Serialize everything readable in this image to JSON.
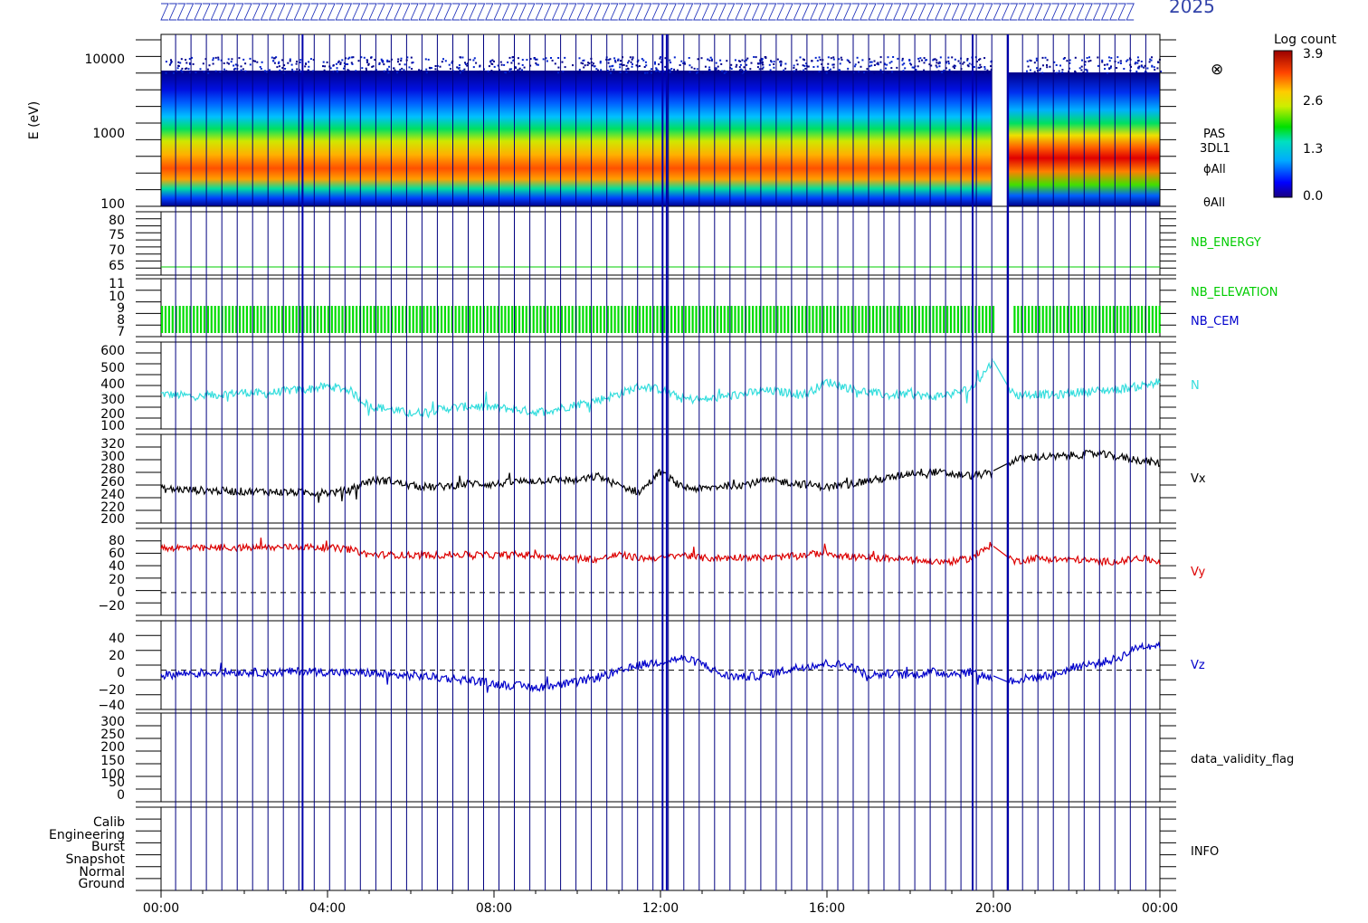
{
  "header": {
    "title_fragment": "2025"
  },
  "x_axis": {
    "ticks": [
      "00:00",
      "04:00",
      "08:00",
      "12:00",
      "16:00",
      "20:00",
      "00:00"
    ],
    "range_hours": [
      0,
      24
    ]
  },
  "colorbar": {
    "title": "Log count",
    "ticks": [
      "3.9",
      "2.6",
      "1.3",
      "0.0"
    ],
    "range": [
      0.0,
      3.9
    ]
  },
  "panels": {
    "spectrogram": {
      "ylabel": "E (eV)",
      "yticks": [
        "10000",
        "1000",
        "100"
      ],
      "log_range": [
        100,
        15000
      ],
      "right_labels": [
        "⊗",
        "PAS",
        "3DL1",
        "ϕAll",
        "θAll"
      ]
    },
    "nb_energy": {
      "label": "NB_ENERGY",
      "label_color": "#00cc00",
      "yticks": [
        "80",
        "75",
        "70",
        "65"
      ],
      "ylim": [
        62,
        82
      ],
      "value": 64
    },
    "nb_elevation": {
      "labels": [
        {
          "text": "NB_ELEVATION",
          "color": "#00cc00"
        },
        {
          "text": "NB_CEM",
          "color": "#0000cc"
        }
      ],
      "yticks": [
        "11",
        "10",
        "9",
        "8",
        "7"
      ],
      "ylim": [
        6.6,
        11.3
      ]
    },
    "density": {
      "label": "N",
      "color": "#33dddd",
      "yticks": [
        "600",
        "500",
        "400",
        "300",
        "200",
        "100"
      ],
      "ylim": [
        70,
        640
      ]
    },
    "vx": {
      "label": "Vx",
      "color": "#000000",
      "yticks": [
        "320",
        "300",
        "280",
        "260",
        "240",
        "220",
        "200"
      ],
      "ylim": [
        192,
        330
      ]
    },
    "vy": {
      "label": "Vy",
      "color": "#dd0000",
      "yticks": [
        "80",
        "60",
        "40",
        "20",
        "0",
        "−20"
      ],
      "ylim": [
        -33,
        93
      ]
    },
    "vz": {
      "label": "Vz",
      "color": "#0000cc",
      "yticks": [
        "40",
        "20",
        "0",
        "−20",
        "−40"
      ],
      "ylim": [
        -46,
        58
      ]
    },
    "validity": {
      "label": "data_validity_flag",
      "yticks": [
        "300",
        "250",
        "200",
        "150",
        "100",
        "50",
        "0"
      ],
      "ylim": [
        -20,
        312
      ]
    },
    "info": {
      "label": "INFO",
      "categories": [
        "Calib",
        "Engineering",
        "Burst",
        "Snapshot",
        "Normal",
        "Ground"
      ]
    }
  },
  "colors": {
    "frame": "#000000",
    "vlines": "#000080",
    "gap_start": 20.0,
    "gap_end": 20.35
  },
  "chart_data": {
    "type": "line",
    "x": [
      0,
      0.5,
      1,
      1.5,
      2,
      2.5,
      3,
      3.5,
      4,
      4.5,
      5,
      5.5,
      6,
      6.5,
      7,
      7.5,
      8,
      8.5,
      9,
      9.5,
      10,
      10.5,
      11,
      11.5,
      12,
      12.5,
      13,
      13.5,
      14,
      14.5,
      15,
      15.5,
      16,
      16.5,
      17,
      17.5,
      18,
      18.5,
      19,
      19.5,
      20,
      20.5,
      21,
      21.5,
      22,
      22.5,
      23,
      23.5,
      24
    ],
    "series": [
      {
        "name": "N",
        "values": [
          300,
          290,
          280,
          300,
          310,
          300,
          320,
          330,
          350,
          330,
          220,
          200,
          170,
          190,
          210,
          220,
          210,
          200,
          180,
          200,
          230,
          260,
          300,
          350,
          330,
          270,
          260,
          280,
          300,
          320,
          310,
          300,
          380,
          340,
          310,
          290,
          300,
          280,
          300,
          340,
          520,
          290,
          300,
          290,
          310,
          320,
          330,
          350,
          380
        ]
      },
      {
        "name": "Vx",
        "values": [
          245,
          244,
          243,
          242,
          241,
          241,
          240,
          240,
          239,
          242,
          258,
          258,
          250,
          248,
          250,
          254,
          252,
          256,
          258,
          260,
          258,
          265,
          250,
          240,
          272,
          248,
          245,
          250,
          252,
          258,
          256,
          252,
          248,
          252,
          258,
          262,
          270,
          272,
          268,
          266,
          270,
          290,
          295,
          295,
          298,
          300,
          295,
          290,
          285
        ]
      },
      {
        "name": "Vy",
        "values": [
          65,
          65,
          64,
          65,
          65,
          65,
          66,
          66,
          65,
          63,
          55,
          55,
          54,
          54,
          55,
          55,
          54,
          55,
          54,
          52,
          50,
          48,
          55,
          50,
          50,
          55,
          50,
          50,
          52,
          50,
          52,
          55,
          58,
          52,
          50,
          50,
          48,
          45,
          45,
          50,
          72,
          45,
          50,
          48,
          48,
          45,
          45,
          50,
          45
        ]
      },
      {
        "name": "Vz",
        "values": [
          -6,
          -4,
          -3,
          -2,
          -2,
          -3,
          -2,
          -1,
          -2,
          -3,
          -3,
          -6,
          -6,
          -8,
          -10,
          -12,
          -16,
          -18,
          -20,
          -18,
          -14,
          -8,
          -2,
          6,
          10,
          14,
          8,
          -6,
          -8,
          -6,
          0,
          5,
          8,
          6,
          -6,
          -4,
          -6,
          -2,
          -4,
          -2,
          -10,
          -12,
          -8,
          -5,
          5,
          8,
          14,
          28,
          30
        ]
      }
    ]
  }
}
